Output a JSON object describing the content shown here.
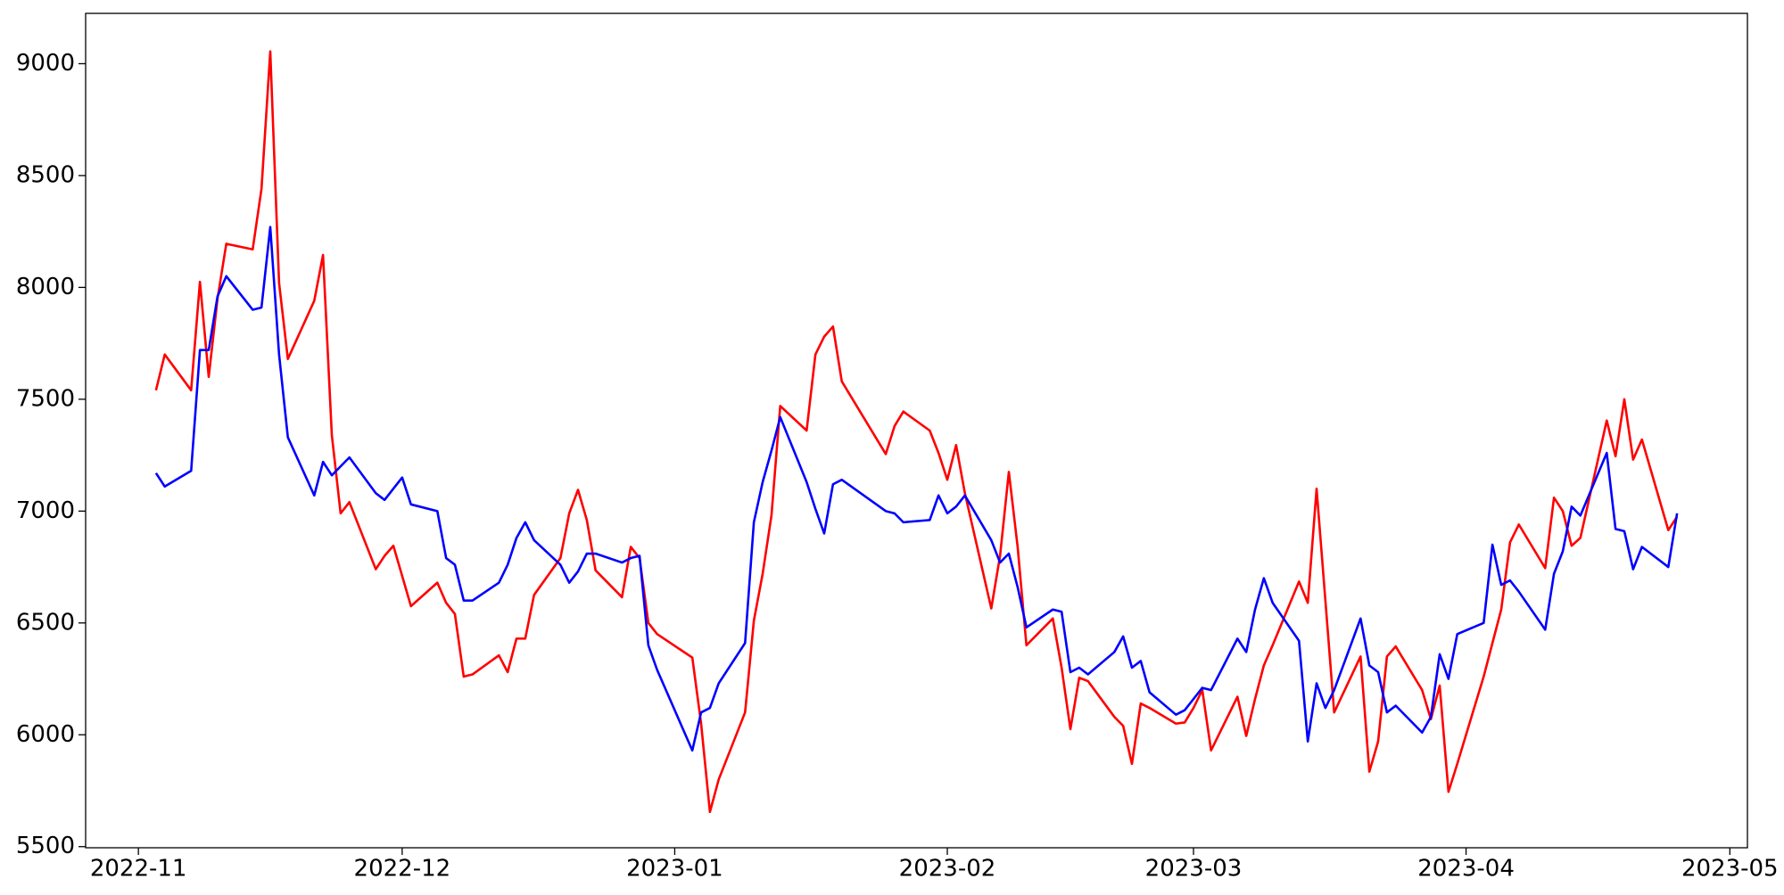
{
  "chart_data": {
    "type": "line",
    "x": [
      "2022-11-03",
      "2022-11-04",
      "2022-11-07",
      "2022-11-08",
      "2022-11-09",
      "2022-11-10",
      "2022-11-11",
      "2022-11-14",
      "2022-11-15",
      "2022-11-16",
      "2022-11-17",
      "2022-11-18",
      "2022-11-21",
      "2022-11-22",
      "2022-11-23",
      "2022-11-24",
      "2022-11-25",
      "2022-11-28",
      "2022-11-29",
      "2022-11-30",
      "2022-12-01",
      "2022-12-02",
      "2022-12-05",
      "2022-12-06",
      "2022-12-07",
      "2022-12-08",
      "2022-12-09",
      "2022-12-12",
      "2022-12-13",
      "2022-12-14",
      "2022-12-15",
      "2022-12-16",
      "2022-12-19",
      "2022-12-20",
      "2022-12-21",
      "2022-12-22",
      "2022-12-23",
      "2022-12-26",
      "2022-12-27",
      "2022-12-28",
      "2022-12-29",
      "2022-12-30",
      "2023-01-03",
      "2023-01-04",
      "2023-01-05",
      "2023-01-06",
      "2023-01-09",
      "2023-01-10",
      "2023-01-11",
      "2023-01-12",
      "2023-01-13",
      "2023-01-16",
      "2023-01-17",
      "2023-01-18",
      "2023-01-19",
      "2023-01-20",
      "2023-01-25",
      "2023-01-26",
      "2023-01-27",
      "2023-01-30",
      "2023-01-31",
      "2023-02-01",
      "2023-02-02",
      "2023-02-03",
      "2023-02-06",
      "2023-02-07",
      "2023-02-08",
      "2023-02-09",
      "2023-02-10",
      "2023-02-13",
      "2023-02-14",
      "2023-02-15",
      "2023-02-16",
      "2023-02-17",
      "2023-02-20",
      "2023-02-21",
      "2023-02-22",
      "2023-02-23",
      "2023-02-24",
      "2023-02-27",
      "2023-02-28",
      "2023-03-01",
      "2023-03-02",
      "2023-03-03",
      "2023-03-06",
      "2023-03-07",
      "2023-03-08",
      "2023-03-09",
      "2023-03-10",
      "2023-03-13",
      "2023-03-14",
      "2023-03-15",
      "2023-03-16",
      "2023-03-17",
      "2023-03-20",
      "2023-03-21",
      "2023-03-22",
      "2023-03-23",
      "2023-03-24",
      "2023-03-27",
      "2023-03-28",
      "2023-03-29",
      "2023-03-30",
      "2023-03-31",
      "2023-04-03",
      "2023-04-04",
      "2023-04-05",
      "2023-04-06",
      "2023-04-07",
      "2023-04-10",
      "2023-04-11",
      "2023-04-12",
      "2023-04-13",
      "2023-04-14",
      "2023-04-17",
      "2023-04-18",
      "2023-04-19",
      "2023-04-20",
      "2023-04-21",
      "2023-04-24",
      "2023-04-25"
    ],
    "series": [
      {
        "color": "#ff0000",
        "values": [
          7540,
          7700,
          7540,
          8025,
          7600,
          7950,
          8195,
          8170,
          8440,
          9055,
          8020,
          7680,
          7940,
          8145,
          7340,
          6990,
          7040,
          6740,
          6800,
          6845,
          6710,
          6575,
          6680,
          6590,
          6540,
          6260,
          6270,
          6355,
          6280,
          6430,
          6430,
          6625,
          6790,
          6990,
          7095,
          6960,
          6735,
          6615,
          6840,
          6790,
          6500,
          6450,
          6345,
          6050,
          5655,
          5800,
          6100,
          6510,
          6720,
          6980,
          7470,
          7360,
          7700,
          7780,
          7825,
          7580,
          7255,
          7380,
          7445,
          7360,
          7260,
          7140,
          7295,
          7080,
          6565,
          6800,
          7175,
          6840,
          6400,
          6520,
          6300,
          6025,
          6255,
          6240,
          6080,
          6040,
          5870,
          6140,
          6120,
          6050,
          6055,
          6120,
          6200,
          5930,
          6170,
          5995,
          6160,
          6310,
          6400,
          6685,
          6590,
          7100,
          6600,
          6100,
          6350,
          5835,
          5970,
          6350,
          6395,
          6200,
          6070,
          6220,
          5745,
          5870,
          6260,
          6410,
          6560,
          6860,
          6940,
          6745,
          7060,
          7000,
          6845,
          6880,
          7405,
          7245,
          7500,
          7230,
          7320,
          6915,
          6975
        ]
      },
      {
        "color": "#0000ff",
        "values": [
          7170,
          7110,
          7180,
          7720,
          7720,
          7960,
          8050,
          7900,
          7910,
          8270,
          7700,
          7330,
          7070,
          7220,
          7160,
          7200,
          7240,
          7080,
          7050,
          7100,
          7150,
          7030,
          7000,
          6790,
          6760,
          6600,
          6600,
          6680,
          6760,
          6880,
          6950,
          6870,
          6760,
          6680,
          6730,
          6810,
          6810,
          6770,
          6790,
          6800,
          6400,
          6290,
          5930,
          6100,
          6120,
          6230,
          6410,
          6950,
          7130,
          7270,
          7420,
          7130,
          7010,
          6900,
          7120,
          7140,
          7000,
          6990,
          6950,
          6960,
          7070,
          6990,
          7020,
          7070,
          6870,
          6770,
          6810,
          6660,
          6480,
          6560,
          6550,
          6280,
          6300,
          6270,
          6370,
          6440,
          6300,
          6330,
          6190,
          6090,
          6110,
          6160,
          6210,
          6200,
          6430,
          6370,
          6560,
          6700,
          6590,
          6420,
          5970,
          6230,
          6120,
          6200,
          6520,
          6310,
          6280,
          6100,
          6130,
          6010,
          6080,
          6360,
          6250,
          6450,
          6500,
          6850,
          6670,
          6690,
          6640,
          6470,
          6720,
          6820,
          7020,
          6980,
          7260,
          6920,
          6910,
          6740,
          6840,
          6750,
          6990
        ]
      }
    ],
    "xlim": [
      "2022-10-26",
      "2023-05-03"
    ],
    "xticks": [
      {
        "value": "2022-11-01",
        "label": "2022-11"
      },
      {
        "value": "2022-12-01",
        "label": "2022-12"
      },
      {
        "value": "2023-01-01",
        "label": "2023-01"
      },
      {
        "value": "2023-02-01",
        "label": "2023-02"
      },
      {
        "value": "2023-03-01",
        "label": "2023-03"
      },
      {
        "value": "2023-04-01",
        "label": "2023-04"
      },
      {
        "value": "2023-05-01",
        "label": "2023-05"
      }
    ],
    "ylim": [
      5495,
      9225
    ],
    "yticks": [
      5500,
      6000,
      6500,
      7000,
      7500,
      8000,
      8500,
      9000
    ],
    "grid": false
  }
}
